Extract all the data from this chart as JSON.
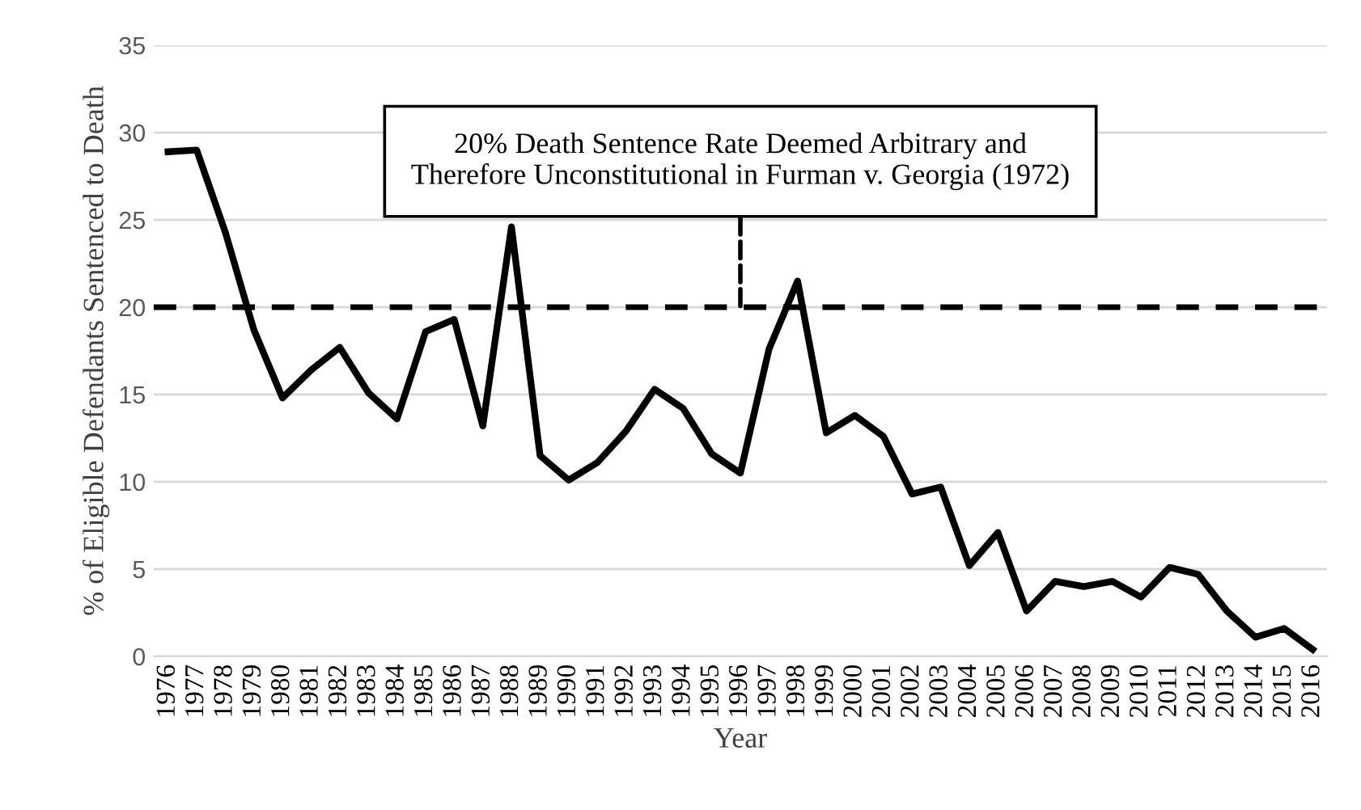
{
  "chart_data": {
    "type": "line",
    "xlabel": "Year",
    "ylabel": "% of Eligible Defendants Sentenced to Death",
    "categories": [
      "1976",
      "1977",
      "1978",
      "1979",
      "1980",
      "1981",
      "1982",
      "1983",
      "1984",
      "1985",
      "1986",
      "1987",
      "1988",
      "1989",
      "1990",
      "1991",
      "1992",
      "1993",
      "1994",
      "1995",
      "1996",
      "1997",
      "1998",
      "1999",
      "2000",
      "2001",
      "2002",
      "2003",
      "2004",
      "2005",
      "2006",
      "2007",
      "2008",
      "2009",
      "2010",
      "2011",
      "2012",
      "2013",
      "2014",
      "2015",
      "2016"
    ],
    "series": [
      {
        "color": "#000000",
        "values": [
          28.9,
          29.0,
          24.3,
          18.7,
          14.8,
          16.4,
          17.7,
          15.1,
          13.6,
          18.6,
          19.3,
          13.2,
          24.6,
          11.5,
          10.1,
          11.1,
          12.9,
          15.3,
          14.2,
          11.6,
          10.5,
          17.6,
          21.5,
          12.8,
          13.8,
          12.6,
          9.3,
          9.7,
          5.2,
          7.1,
          2.6,
          4.3,
          4.0,
          4.3,
          3.4,
          5.1,
          4.7,
          2.6,
          1.1,
          1.6,
          0.4
        ]
      }
    ],
    "ylim": [
      0,
      35
    ],
    "yticks": [
      0,
      5,
      10,
      15,
      20,
      25,
      30,
      35
    ],
    "grid": "y",
    "marker": "none",
    "line_style": "solid",
    "ref_lines": [
      {
        "axis": "y",
        "value": 20,
        "label": "20% Death Sentence Rate Deemed Arbitrary and\nTherefore Unconstitutional in Furman v. Georgia (1972)",
        "color": "#000000",
        "line_style": "dashed"
      }
    ]
  }
}
